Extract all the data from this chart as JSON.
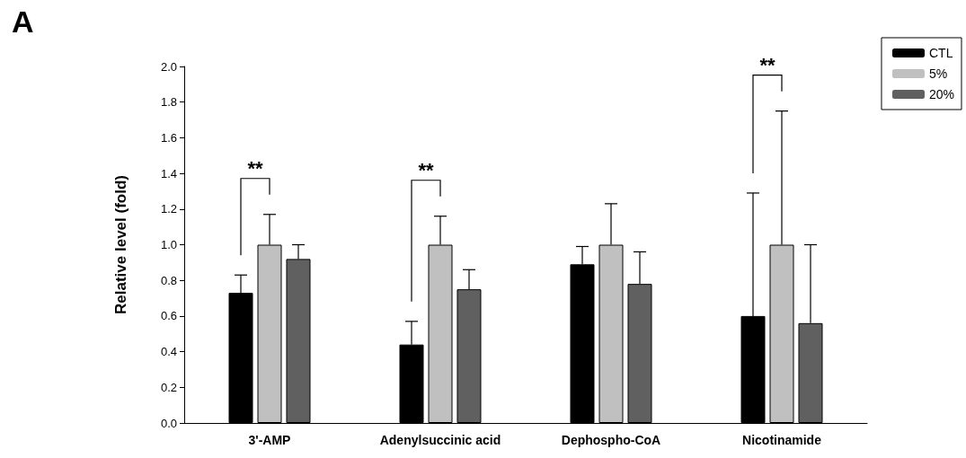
{
  "chart_data": {
    "type": "bar",
    "title": "A",
    "ylabel": "Relative level (fold)",
    "categories": [
      "3'-AMP",
      "Adenylsuccinic acid",
      "Dephospho-CoA",
      "Nicotinamide"
    ],
    "series": [
      {
        "name": "CTL",
        "color": "#000000",
        "values": [
          0.73,
          0.44,
          0.89,
          0.6
        ],
        "errors": [
          [
            0.73,
            0.83
          ],
          [
            0.44,
            0.57
          ],
          [
            0.89,
            0.99
          ],
          [
            0.6,
            1.29
          ]
        ]
      },
      {
        "name": "5%",
        "color": "#c0c0c0",
        "values": [
          1.0,
          1.0,
          1.0,
          1.0
        ],
        "errors": [
          [
            1.0,
            1.17
          ],
          [
            1.0,
            1.16
          ],
          [
            1.0,
            1.23
          ],
          [
            1.0,
            1.75
          ]
        ]
      },
      {
        "name": "20%",
        "color": "#606060",
        "values": [
          0.92,
          0.75,
          0.78,
          0.56
        ],
        "errors": [
          [
            0.92,
            1.0
          ],
          [
            0.75,
            0.86
          ],
          [
            0.78,
            0.96
          ],
          [
            0.56,
            1.0
          ]
        ]
      }
    ],
    "ylim": [
      0,
      2.0
    ],
    "yticks": [
      {
        "value": 0,
        "label": "0.0"
      },
      {
        "value": 0.2,
        "label": "0.2"
      },
      {
        "value": 0.4,
        "label": "0.4"
      },
      {
        "value": 0.6,
        "label": "0.6"
      },
      {
        "value": 0.8,
        "label": "0.8"
      },
      {
        "value": 1.0,
        "label": "1.0"
      },
      {
        "value": 1.2,
        "label": "1.2"
      },
      {
        "value": 1.4,
        "label": "1.4"
      },
      {
        "value": 1.6,
        "label": "1.6"
      },
      {
        "value": 1.8,
        "label": "1.8"
      },
      {
        "value": 2.0,
        "label": "2.0"
      }
    ],
    "annotations": [
      "**",
      "**",
      "**"
    ],
    "legend": "top right",
    "grid": false
  }
}
